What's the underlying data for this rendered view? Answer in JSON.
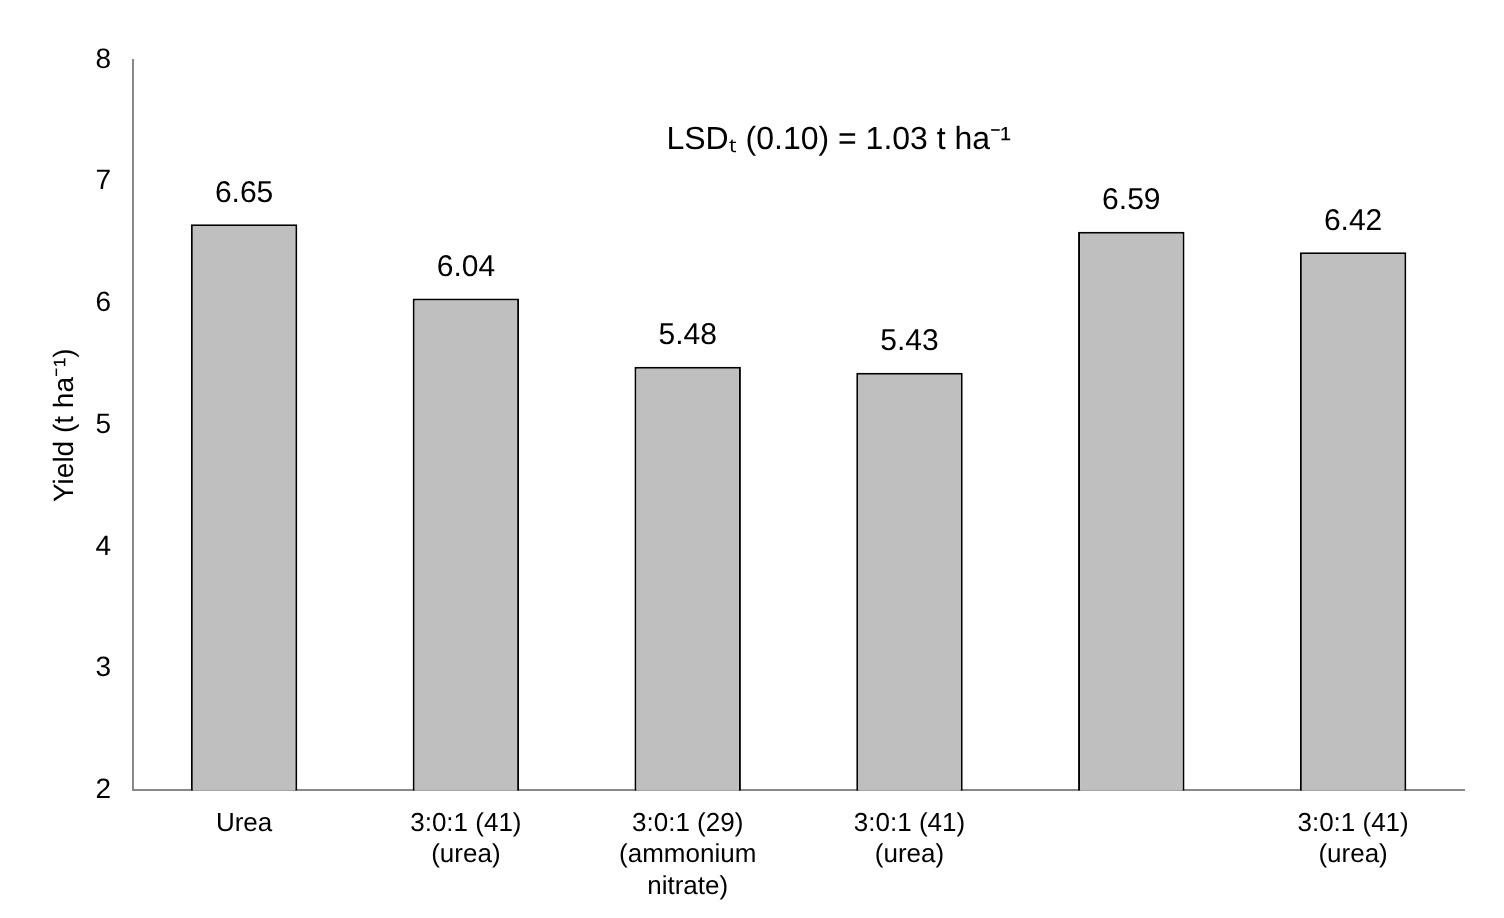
{
  "chart_data": {
    "type": "bar",
    "ylabel": "Yield (t ha⁻¹)",
    "annotations": [
      "LSDₜ (0.10) = 1.03 t ha⁻¹"
    ],
    "categories": [
      "Urea",
      "3:0:1 (41) (urea)",
      "3:0:1 (29) (ammonium nitrate)",
      "3:0:1 (41) (urea)",
      null,
      "3:0:1 (41) (urea)"
    ],
    "values": [
      6.65,
      6.04,
      5.48,
      5.43,
      6.59,
      6.42
    ],
    "color": "#bfbfbf",
    "ylim": [
      2,
      8
    ],
    "yticks": [
      2,
      3,
      4,
      5,
      6,
      7,
      8
    ],
    "grid": false,
    "legend": false,
    "data_labels": true
  }
}
